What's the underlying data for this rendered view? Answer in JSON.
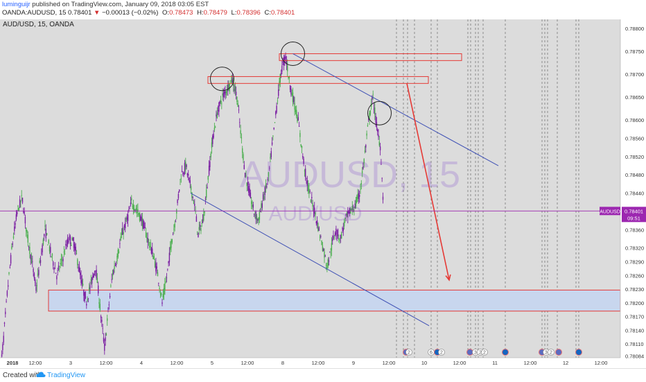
{
  "publish": {
    "user": "luminguijr",
    "text": "published on TradingView.com, January 09, 2018 03:05 EST"
  },
  "symbol_line": {
    "symbol": "OANDA:AUDUSD, 15",
    "last": "0.78401",
    "arrow": "▼",
    "change": "−0.00013 (−0.02%)",
    "o_label": "O:",
    "o": "0.78473",
    "h_label": "H:",
    "h": "0.78479",
    "l_label": "L:",
    "l": "0.78396",
    "c_label": "C:",
    "c": "0.78401"
  },
  "chart_title": "AUD/USD, 15, OANDA",
  "watermark": {
    "main": "AUDUSD, 15",
    "sub": "AUD/USD"
  },
  "footer": {
    "created": "Created with",
    "brand": "TradingView"
  },
  "colors": {
    "background": "#dcdcdc",
    "bull_candle": "#4caf50",
    "bear_candle": "#7b1fa2",
    "trend_channel": "#3f51b5",
    "zone_border": "#e53935",
    "arrow": "#e53935",
    "price_line": "#9c27b0",
    "price_tag": "#9c27b0"
  },
  "chart_data": {
    "type": "candlestick",
    "instrument": "AUD/USD",
    "timeframe": "15",
    "ylim": [
      0.7808,
      0.7882
    ],
    "y_ticks": [
      "0.78800",
      "0.78750",
      "0.78700",
      "0.78650",
      "0.78600",
      "0.78560",
      "0.78520",
      "0.78480",
      "0.78440",
      "0.78400",
      "0.78360",
      "0.78320",
      "0.78290",
      "0.78260",
      "0.78230",
      "0.78200",
      "0.78170",
      "0.78140",
      "0.78110",
      "0.78084"
    ],
    "x_ticks": [
      "2018",
      "12:00",
      "3",
      "12:00",
      "4",
      "12:00",
      "5",
      "12:00",
      "8",
      "12:00",
      "9",
      "12:00",
      "10",
      "12:00",
      "11",
      "12:00",
      "12",
      "12:00"
    ],
    "x_tick_values": [
      0,
      102,
      204,
      306,
      408,
      510,
      612,
      714,
      816,
      918,
      1020,
      1122,
      1224,
      1326,
      1428,
      1530,
      1632,
      1734
    ],
    "x_range": [
      0,
      1790
    ],
    "last_candle_x": 1107,
    "price_tag": {
      "symbol": "AUDUSD",
      "price": "0.78401",
      "countdown": "09:51",
      "value": 0.78401
    },
    "price_path": [
      [
        0,
        0.7804
      ],
      [
        10,
        0.7812
      ],
      [
        22,
        0.7823
      ],
      [
        36,
        0.7833
      ],
      [
        50,
        0.784
      ],
      [
        64,
        0.7843
      ],
      [
        78,
        0.7835
      ],
      [
        92,
        0.7829
      ],
      [
        104,
        0.7823
      ],
      [
        116,
        0.7829
      ],
      [
        130,
        0.7836
      ],
      [
        146,
        0.7831
      ],
      [
        164,
        0.7826
      ],
      [
        182,
        0.783
      ],
      [
        198,
        0.7834
      ],
      [
        214,
        0.7833
      ],
      [
        232,
        0.7826
      ],
      [
        248,
        0.782
      ],
      [
        262,
        0.7824
      ],
      [
        276,
        0.7828
      ],
      [
        290,
        0.7818
      ],
      [
        302,
        0.781
      ],
      [
        312,
        0.7818
      ],
      [
        324,
        0.7826
      ],
      [
        338,
        0.783
      ],
      [
        352,
        0.7835
      ],
      [
        366,
        0.7838
      ],
      [
        380,
        0.7842
      ],
      [
        396,
        0.784
      ],
      [
        410,
        0.7838
      ],
      [
        426,
        0.7834
      ],
      [
        440,
        0.7831
      ],
      [
        456,
        0.7826
      ],
      [
        468,
        0.782
      ],
      [
        480,
        0.7825
      ],
      [
        494,
        0.7833
      ],
      [
        508,
        0.7839
      ],
      [
        522,
        0.7848
      ],
      [
        536,
        0.785
      ],
      [
        548,
        0.7846
      ],
      [
        560,
        0.7842
      ],
      [
        572,
        0.7835
      ],
      [
        586,
        0.7838
      ],
      [
        600,
        0.7847
      ],
      [
        614,
        0.7856
      ],
      [
        628,
        0.7862
      ],
      [
        642,
        0.7865
      ],
      [
        656,
        0.7867
      ],
      [
        670,
        0.7869
      ],
      [
        684,
        0.7865
      ],
      [
        696,
        0.7856
      ],
      [
        708,
        0.7848
      ],
      [
        720,
        0.7844
      ],
      [
        732,
        0.784
      ],
      [
        746,
        0.7838
      ],
      [
        760,
        0.7843
      ],
      [
        774,
        0.7847
      ],
      [
        788,
        0.7856
      ],
      [
        800,
        0.7864
      ],
      [
        812,
        0.7871
      ],
      [
        824,
        0.7874
      ],
      [
        836,
        0.7868
      ],
      [
        848,
        0.7864
      ],
      [
        860,
        0.786
      ],
      [
        872,
        0.7853
      ],
      [
        884,
        0.7847
      ],
      [
        896,
        0.7843
      ],
      [
        908,
        0.784
      ],
      [
        920,
        0.7836
      ],
      [
        932,
        0.7832
      ],
      [
        944,
        0.7828
      ],
      [
        956,
        0.7832
      ],
      [
        968,
        0.7836
      ],
      [
        982,
        0.7834
      ],
      [
        996,
        0.7838
      ],
      [
        1010,
        0.784
      ],
      [
        1024,
        0.7841
      ],
      [
        1038,
        0.7844
      ],
      [
        1052,
        0.7852
      ],
      [
        1064,
        0.786
      ],
      [
        1076,
        0.7865
      ],
      [
        1088,
        0.7858
      ],
      [
        1098,
        0.7854
      ],
      [
        1107,
        0.78401
      ]
    ],
    "annotations": {
      "supply_zones": [
        {
          "x_start": 600,
          "x_end": 1236,
          "y_low": 0.7868,
          "y_high": 0.78695,
          "fill": "none"
        },
        {
          "x_start": 806,
          "x_end": 1332,
          "y_low": 0.7873,
          "y_high": 0.78745,
          "fill": "none"
        }
      ],
      "demand_zone": {
        "x_start": 140,
        "x_end": 1790,
        "y_low": 0.78182,
        "y_high": 0.78228,
        "fill": "#c8d6ee"
      },
      "channel_upper": {
        "x1": 845,
        "y1": 0.78745,
        "x2": 1438,
        "y2": 0.785
      },
      "channel_lower": {
        "x1": 550,
        "y1": 0.7844,
        "x2": 1238,
        "y2": 0.7815
      },
      "circles": [
        {
          "x": 641,
          "y": 0.7869
        },
        {
          "x": 845,
          "y": 0.78745
        },
        {
          "x": 1095,
          "y": 0.78615
        }
      ],
      "arrow": {
        "x1": 1174,
        "y1": 0.7868,
        "x2": 1296,
        "y2": 0.7825
      },
      "session_lines_x": [
        1144,
        1164,
        1176,
        1196,
        1244,
        1262,
        1350,
        1358,
        1372,
        1380,
        1394,
        1458,
        1564,
        1572,
        1580,
        1608,
        1662,
        1670
      ]
    },
    "events": [
      {
        "x": 1172,
        "kind": "us"
      },
      {
        "x": 1180,
        "kind": "badge",
        "label": "2"
      },
      {
        "x": 1244,
        "kind": "badge",
        "label": "6"
      },
      {
        "x": 1262,
        "kind": "au"
      },
      {
        "x": 1274,
        "kind": "badge",
        "label": "2"
      },
      {
        "x": 1356,
        "kind": "us"
      },
      {
        "x": 1372,
        "kind": "badge",
        "label": "3"
      },
      {
        "x": 1386,
        "kind": "badge",
        "label": "2"
      },
      {
        "x": 1398,
        "kind": "badge",
        "label": "2"
      },
      {
        "x": 1458,
        "kind": "au"
      },
      {
        "x": 1564,
        "kind": "us"
      },
      {
        "x": 1576,
        "kind": "badge",
        "label": "3"
      },
      {
        "x": 1590,
        "kind": "badge",
        "label": "2"
      },
      {
        "x": 1612,
        "kind": "us"
      },
      {
        "x": 1670,
        "kind": "au"
      }
    ]
  }
}
